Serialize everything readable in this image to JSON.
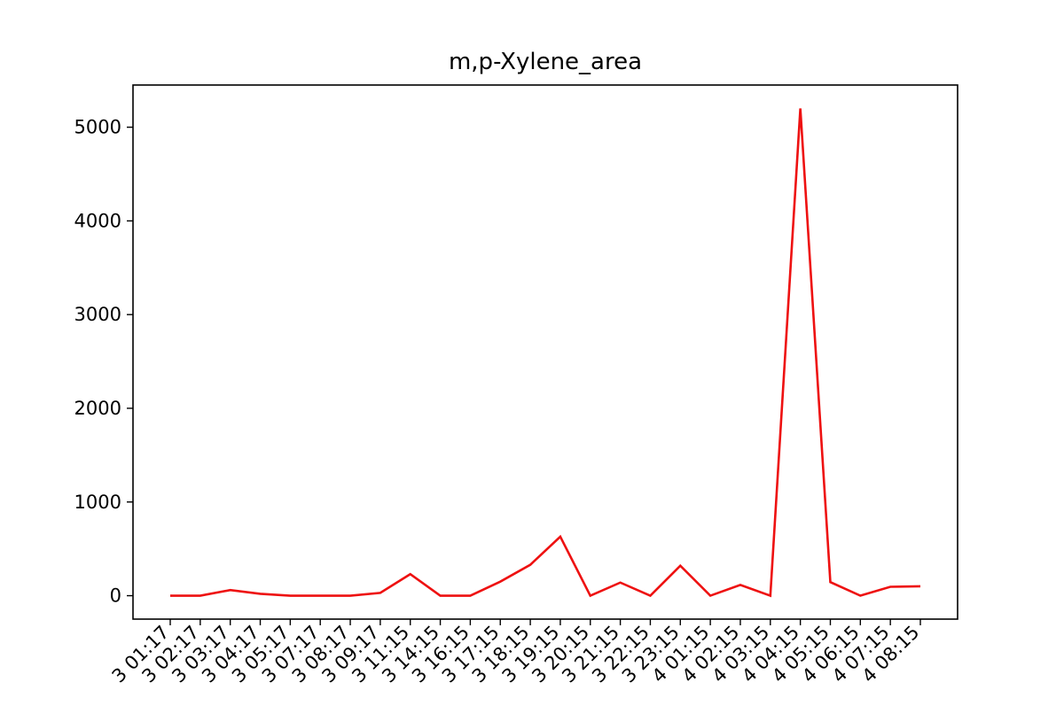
{
  "chart_data": {
    "type": "line",
    "title": "m,p-Xylene_area",
    "xlabel": "",
    "ylabel": "",
    "categories": [
      "3 01:17",
      "3 02:17",
      "3 03:17",
      "3 04:17",
      "3 05:17",
      "3 07:17",
      "3 08:17",
      "3 09:17",
      "3 11:15",
      "3 14:15",
      "3 16:15",
      "3 17:15",
      "3 18:15",
      "3 19:15",
      "3 20:15",
      "3 21:15",
      "3 22:15",
      "3 23:15",
      "4 01:15",
      "4 02:15",
      "4 03:15",
      "4 04:15",
      "4 05:15",
      "4 06:15",
      "4 07:15",
      "4 08:15"
    ],
    "series": [
      {
        "color": "#ee1111",
        "values": [
          0,
          0,
          60,
          20,
          0,
          0,
          0,
          30,
          230,
          0,
          0,
          150,
          330,
          630,
          0,
          140,
          0,
          320,
          0,
          115,
          0,
          5200,
          145,
          0,
          95,
          100
        ]
      }
    ],
    "ylim": [
      -250,
      5450
    ],
    "yticks": [
      0,
      1000,
      2000,
      3000,
      4000,
      5000
    ],
    "grid": false,
    "legend": "none"
  }
}
